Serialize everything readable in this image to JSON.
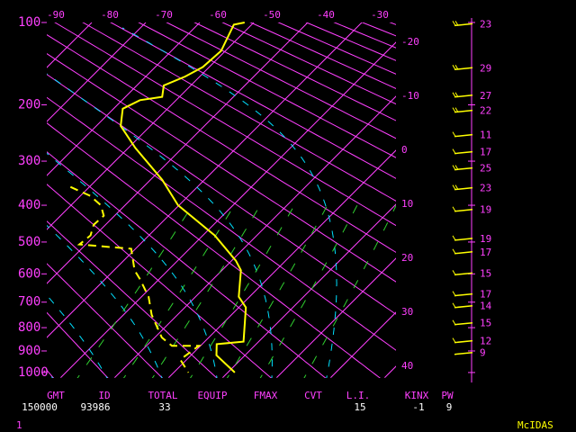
{
  "chart_data": {
    "type": "skewt",
    "ylim": [
      100,
      1025
    ],
    "yticks": [
      100,
      200,
      300,
      400,
      500,
      600,
      700,
      800,
      900,
      1000
    ],
    "temperature_ticks": [
      -90,
      -80,
      -70,
      -60,
      -50,
      -40,
      -30,
      -20,
      -10,
      0,
      10,
      20,
      30,
      40
    ],
    "series": [
      {
        "name": "temperature",
        "color": "#ffff00",
        "pressure": [
          100,
          102,
          129,
          148,
          160,
          172,
          188,
          193,
          206,
          234,
          274,
          340,
          400,
          481,
          557,
          588,
          680,
          720,
          859,
          870,
          919,
          1000
        ],
        "values": [
          -51.7,
          -53.3,
          -50.8,
          -51.2,
          -52.7,
          -55,
          -53.2,
          -56.7,
          -58.3,
          -55.5,
          -48.7,
          -37.8,
          -30.2,
          -17.8,
          -9.2,
          -6.5,
          -2,
          1.3,
          7.2,
          2.7,
          4.7,
          11.3
        ]
      },
      {
        "name": "dewpoint",
        "color": "#ffff00",
        "pressure": [
          356,
          377,
          400,
          427,
          451,
          481,
          507,
          515,
          520,
          588,
          616,
          680,
          748,
          841,
          877,
          877,
          939,
          1000
        ],
        "values": [
          -53.5,
          -48.2,
          -44.5,
          -42,
          -42.2,
          -40.8,
          -41.2,
          -35,
          -30.8,
          -26.2,
          -23.7,
          -18.7,
          -14.8,
          -8.7,
          -5.3,
          -0.3,
          -1.2,
          2.7
        ]
      }
    ],
    "wind": {
      "pressure": [
        102,
        150,
        187,
        210,
        251,
        283,
        316,
        360,
        413,
        492,
        532,
        600,
        673,
        717,
        784,
        859,
        911
      ],
      "speed": [
        23,
        29,
        27,
        22,
        11,
        17,
        25,
        23,
        19,
        19,
        17,
        15,
        17,
        14,
        15,
        12,
        9
      ]
    },
    "stats": [
      {
        "label": "GMT",
        "value": 150000
      },
      {
        "label": "ID",
        "value": 93986
      },
      {
        "label": "TOTAL",
        "value": 33
      },
      {
        "label": "EQUIP"
      },
      {
        "label": "FMAX"
      },
      {
        "label": "CVT"
      },
      {
        "label": "L.I.",
        "value": 15
      },
      {
        "label": "KINX",
        "value": -1
      },
      {
        "label": "PW",
        "value": 9
      }
    ],
    "frame": "1",
    "brand": "McIDAS"
  }
}
